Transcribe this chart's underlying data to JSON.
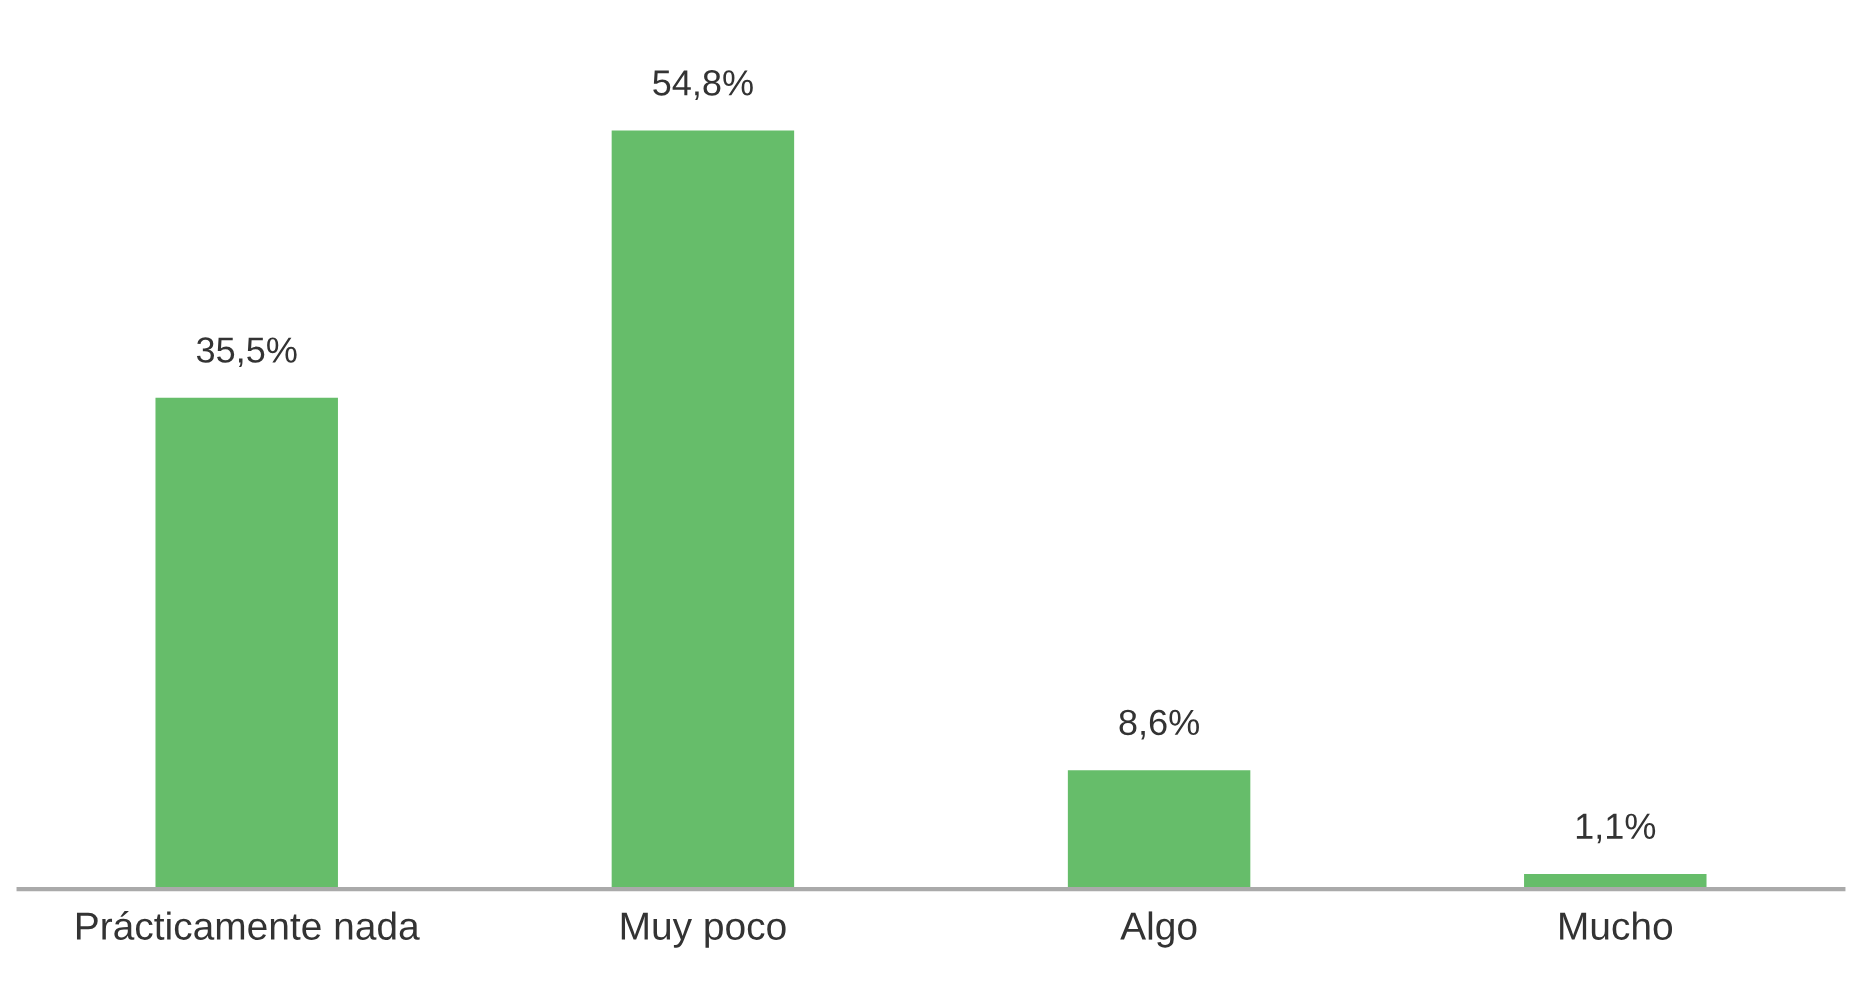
{
  "chart_data": {
    "type": "bar",
    "categories": [
      "Prácticamente nada",
      "Muy poco",
      "Algo",
      "Mucho"
    ],
    "values": [
      35.5,
      54.8,
      8.6,
      1.1
    ],
    "color": "#66bd6a",
    "value_labels": [
      "35,5%",
      "54,8%",
      "8,6%",
      "1,1%"
    ],
    "grid": false,
    "legend": false
  }
}
